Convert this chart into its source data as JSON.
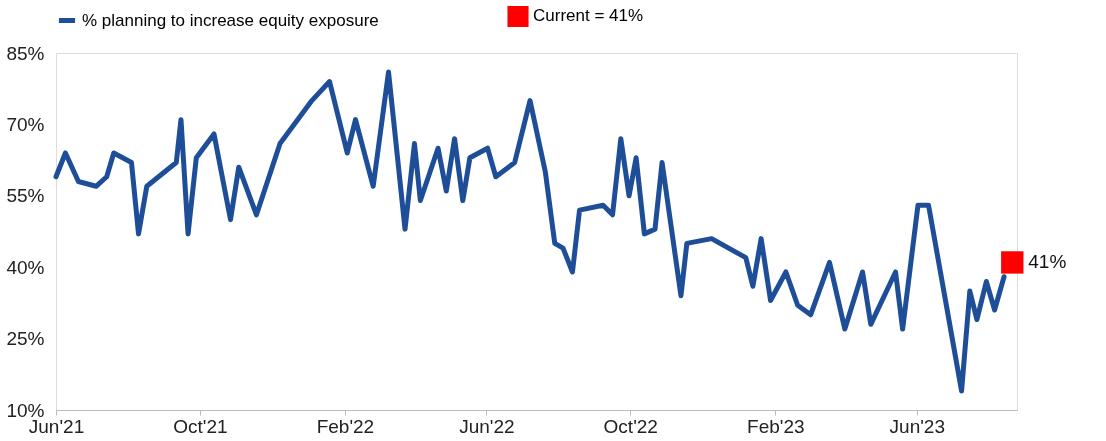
{
  "chart_data": {
    "type": "line",
    "xlim": [
      "2021-06-01",
      "2023-08-25"
    ],
    "ylim": [
      10,
      85
    ],
    "yticks": [
      {
        "value": 10,
        "label": "10%"
      },
      {
        "value": 25,
        "label": "25%"
      },
      {
        "value": 40,
        "label": "40%"
      },
      {
        "value": 55,
        "label": "55%"
      },
      {
        "value": 70,
        "label": "70%"
      },
      {
        "value": 85,
        "label": "85%"
      }
    ],
    "xticks": [
      {
        "value": "2021-06-01",
        "label": "Jun'21"
      },
      {
        "value": "2021-10-01",
        "label": "Oct'21"
      },
      {
        "value": "2022-02-01",
        "label": "Feb'22"
      },
      {
        "value": "2022-06-01",
        "label": "Jun'22"
      },
      {
        "value": "2022-10-01",
        "label": "Oct'22"
      },
      {
        "value": "2023-02-01",
        "label": "Feb'23"
      },
      {
        "value": "2023-06-01",
        "label": "Jun'23"
      }
    ],
    "grid": false,
    "legend": "top",
    "series": [
      {
        "name": "% planning to increase equity exposure",
        "color": "#1f4e99",
        "marker": "none",
        "line_style": "solid",
        "x": [
          "2021-06-01",
          "2021-06-09",
          "2021-06-20",
          "2021-07-05",
          "2021-07-14",
          "2021-07-20",
          "2021-08-04",
          "2021-08-10",
          "2021-08-17",
          "2021-09-11",
          "2021-09-15",
          "2021-09-21",
          "2021-09-28",
          "2021-10-13",
          "2021-10-27",
          "2021-11-03",
          "2021-11-18",
          "2021-12-08",
          "2022-01-04",
          "2022-01-19",
          "2022-02-03",
          "2022-02-10",
          "2022-02-25",
          "2022-03-10",
          "2022-03-24",
          "2022-04-01",
          "2022-04-06",
          "2022-04-21",
          "2022-04-28",
          "2022-05-05",
          "2022-05-12",
          "2022-05-18",
          "2022-06-02",
          "2022-06-09",
          "2022-06-25",
          "2022-07-08",
          "2022-07-21",
          "2022-07-29",
          "2022-08-05",
          "2022-08-13",
          "2022-08-19",
          "2022-09-08",
          "2022-09-16",
          "2022-09-23",
          "2022-09-30",
          "2022-10-06",
          "2022-10-13",
          "2022-10-22",
          "2022-10-28",
          "2022-11-13",
          "2022-11-18",
          "2022-12-09",
          "2023-01-07",
          "2023-01-13",
          "2023-01-20",
          "2023-01-28",
          "2023-02-10",
          "2023-02-20",
          "2023-03-03",
          "2023-03-19",
          "2023-04-01",
          "2023-04-16",
          "2023-04-23",
          "2023-05-14",
          "2023-05-20",
          "2023-06-02",
          "2023-06-11",
          "2023-07-09",
          "2023-07-16",
          "2023-07-22",
          "2023-07-30",
          "2023-08-06",
          "2023-08-14"
        ],
        "values": [
          59,
          64,
          58,
          57,
          59,
          64,
          62,
          47,
          57,
          62,
          71,
          47,
          63,
          68,
          50,
          61,
          51,
          66,
          75,
          79,
          64,
          71,
          57,
          81,
          48,
          66,
          54,
          65,
          56,
          67,
          54,
          63,
          65,
          59,
          62,
          75,
          60,
          45,
          44,
          39,
          52,
          53,
          51,
          67,
          55,
          63,
          47,
          48,
          62,
          34,
          45,
          46,
          42,
          36,
          46,
          33,
          39,
          32,
          30,
          41,
          27,
          39,
          28,
          39,
          27,
          53,
          53,
          14,
          35,
          29,
          37,
          31,
          38
        ]
      },
      {
        "name": "Current = 41%",
        "color": "#ff0000",
        "type": "scatter",
        "marker": "square",
        "x": [
          "2023-08-21"
        ],
        "values": [
          41
        ],
        "value_labels": [
          "41%"
        ]
      }
    ]
  }
}
